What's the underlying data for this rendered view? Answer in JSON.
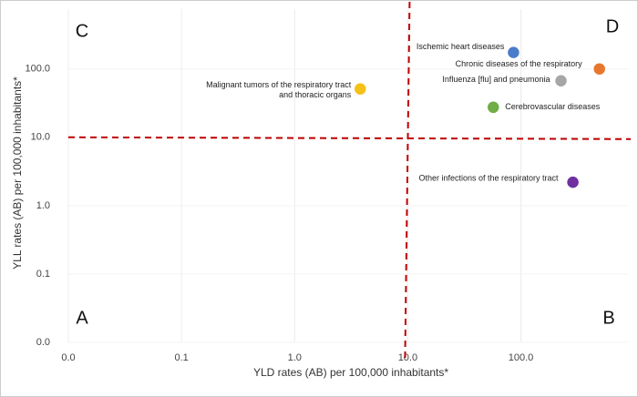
{
  "chart_data": {
    "type": "scatter",
    "x_label": "YLD rates (AB) per 100,000 inhabitants*",
    "y_label": "YLL rates (AB) per 100,000 inhabitants*",
    "xscale": "log",
    "yscale": "log",
    "xlim": [
      0.01,
      900
    ],
    "ylim": [
      0.01,
      750
    ],
    "xticks": [
      {
        "value": 0.01,
        "label": "0.0"
      },
      {
        "value": 0.1,
        "label": "0.1"
      },
      {
        "value": 1,
        "label": "1.0"
      },
      {
        "value": 10,
        "label": "10.0"
      },
      {
        "value": 100,
        "label": "100.0"
      }
    ],
    "yticks": [
      {
        "value": 0.01,
        "label": "0.0"
      },
      {
        "value": 0.1,
        "label": "0.1"
      },
      {
        "value": 1,
        "label": "1.0"
      },
      {
        "value": 10,
        "label": "10.0"
      },
      {
        "value": 100,
        "label": "100.0"
      }
    ],
    "grid": true,
    "thresholds": {
      "x": 10,
      "y": 10,
      "color": "#c00000"
    },
    "quadrant_labels": [
      "C",
      "D",
      "A",
      "B"
    ],
    "points": [
      {
        "label": [
          "Ischemic heart diseases"
        ],
        "x": 86,
        "y": 174,
        "color": "#4a7cc9"
      },
      {
        "label": [
          "Chronic diseases of the respiratory"
        ],
        "x": 494,
        "y": 100,
        "color": "#e8772e"
      },
      {
        "label": [
          "Influenza [flu] and pneumonia"
        ],
        "x": 226,
        "y": 67,
        "color": "#a6a6a6"
      },
      {
        "label": [
          "Cerebrovascular diseases"
        ],
        "x": 57,
        "y": 27.5,
        "color": "#70ad47"
      },
      {
        "label": [
          "Malignant tumors of the respiratory tract",
          "and thoracic organs"
        ],
        "x": 3.8,
        "y": 51,
        "color": "#f5c018"
      },
      {
        "label": [
          "Other infections of the respiratory tract"
        ],
        "x": 288,
        "y": 2.2,
        "color": "#7030a0"
      }
    ]
  }
}
